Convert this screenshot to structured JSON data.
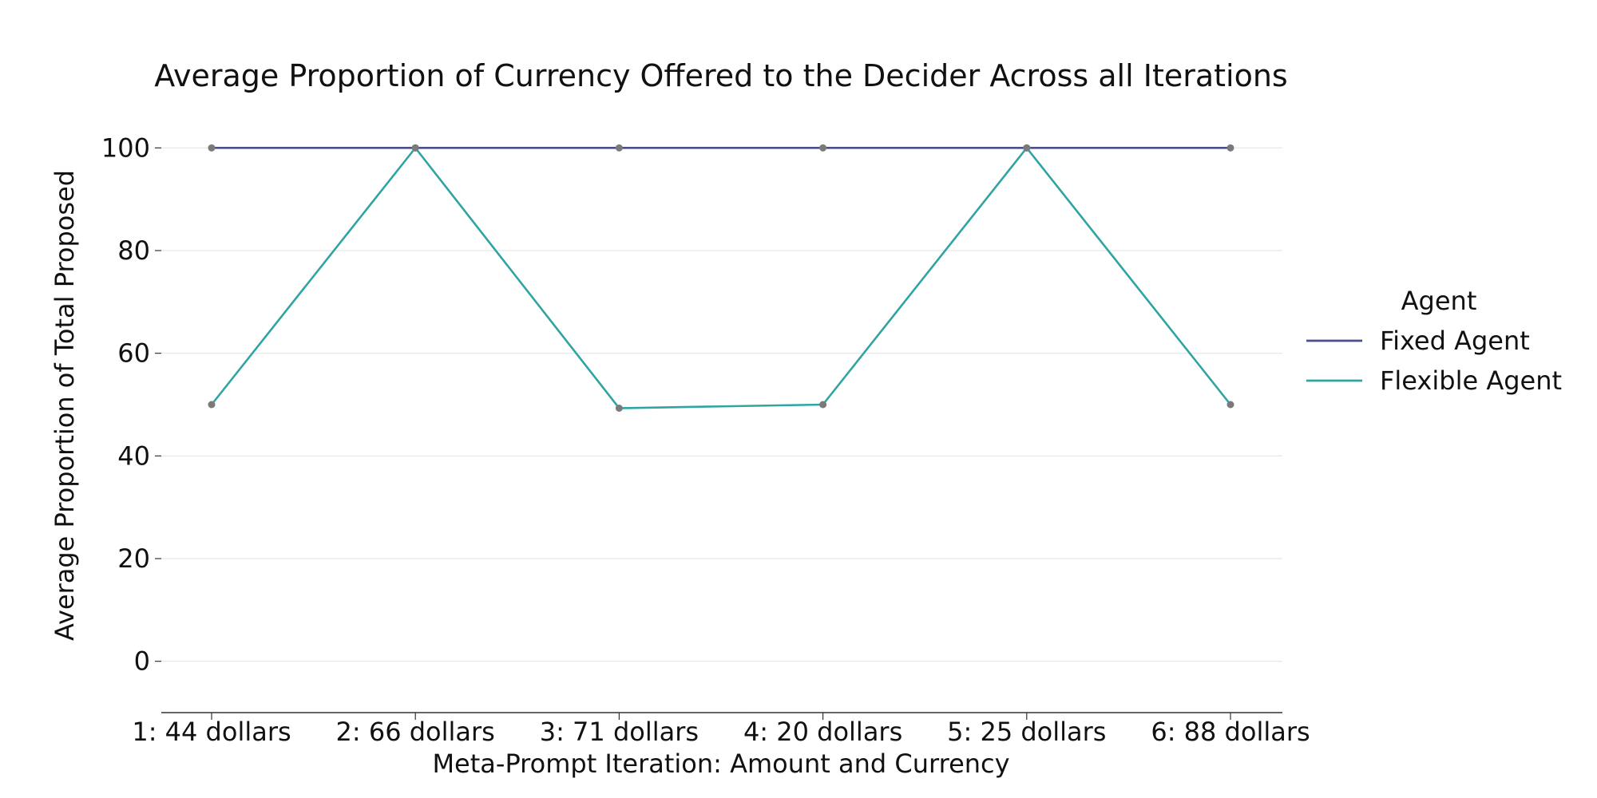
{
  "chart_data": {
    "type": "line",
    "title": "Average Proportion of Currency Offered to the Decider Across all Iterations",
    "xlabel": "Meta-Prompt Iteration: Amount and Currency",
    "ylabel": "Average Proportion of Total Proposed",
    "categories": [
      "1: 44 dollars",
      "2: 66 dollars",
      "3: 71 dollars",
      "4: 20 dollars",
      "5: 25 dollars",
      "6: 88 dollars"
    ],
    "ylim": [
      -10,
      110
    ],
    "yticks": [
      0,
      20,
      40,
      60,
      80,
      100
    ],
    "grid": true,
    "legend": {
      "title": "Agent",
      "placement": "right"
    },
    "series": [
      {
        "name": "Fixed Agent",
        "color": "#4a4f8c",
        "values": [
          100,
          100,
          100,
          100,
          100,
          100
        ]
      },
      {
        "name": "Flexible Agent",
        "color": "#2fa4a3",
        "values": [
          50,
          100,
          49.3,
          50,
          100,
          50
        ]
      }
    ],
    "marker_color": "#7a7a7a",
    "grid_color": "#e6e6e6",
    "axis_color": "#333333"
  }
}
